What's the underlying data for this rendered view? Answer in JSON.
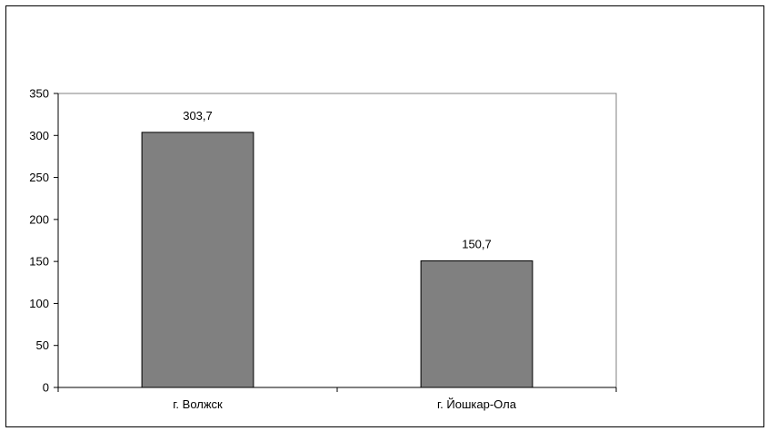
{
  "chart_data": {
    "type": "bar",
    "categories": [
      "г. Волжск",
      "г. Йошкар-Ола"
    ],
    "values": [
      303.7,
      150.7
    ],
    "data_labels": [
      "303,7",
      "150,7"
    ],
    "ylim": [
      0,
      350
    ],
    "yticks": [
      0,
      50,
      100,
      150,
      200,
      250,
      300,
      350
    ],
    "title": "",
    "xlabel": "",
    "ylabel": "",
    "grid": false,
    "legend": "none",
    "colors": {
      "bar": "#808080",
      "plot_background": "#ffffff",
      "axis": "#000000"
    }
  }
}
